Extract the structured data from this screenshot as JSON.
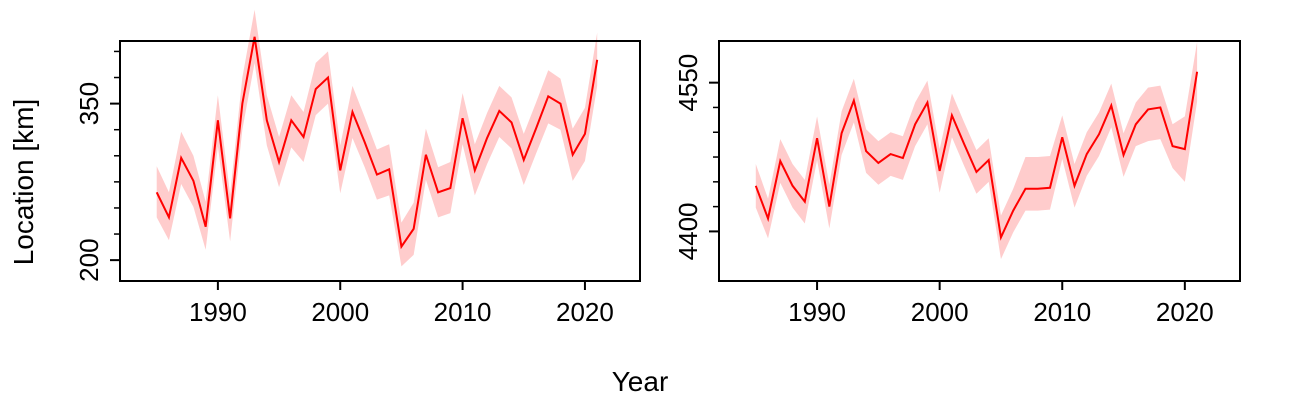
{
  "figure": {
    "xlabel": "Year",
    "ylabel": "Location [km]"
  },
  "colors": {
    "line": "#ff0000",
    "band": "#ffcccc",
    "axis": "#000000"
  },
  "chart_data": [
    {
      "type": "line",
      "title": "",
      "xlabel": "",
      "ylabel": "Location [km]",
      "xlim": [
        1982,
        2024.5
      ],
      "ylim": [
        180,
        410
      ],
      "x_ticks": [
        1990,
        2000,
        2010,
        2020
      ],
      "y_ticks_major": [
        200,
        350
      ],
      "y_ticks_minor": [
        225,
        250,
        275,
        300,
        325,
        375,
        400
      ],
      "grid": false,
      "legend": "none",
      "series": [
        {
          "x": [
            1985,
            1986,
            1987,
            1988,
            1989,
            1990,
            1991,
            1992,
            1993,
            1994,
            1995,
            1996,
            1997,
            1998,
            1999,
            2000,
            2001,
            2002,
            2003,
            2004,
            2005,
            2006,
            2007,
            2008,
            2009,
            2010,
            2011,
            2012,
            2013,
            2014,
            2015,
            2016,
            2017,
            2018,
            2019,
            2020,
            2021
          ],
          "y": [
            265,
            241,
            298,
            276,
            232,
            334,
            240,
            350,
            414,
            334,
            294,
            334,
            318,
            364,
            375,
            286,
            342,
            313,
            282,
            287,
            213,
            230,
            301,
            265,
            269,
            336,
            286,
            317,
            343,
            332,
            296,
            326,
            357,
            350,
            301,
            321,
            392
          ],
          "lower": [
            241,
            219,
            273,
            251,
            210,
            309,
            218,
            325,
            389,
            310,
            270,
            308,
            294,
            339,
            350,
            264,
            317,
            289,
            258,
            262,
            194,
            205,
            277,
            241,
            245,
            311,
            262,
            292,
            318,
            307,
            272,
            302,
            331,
            325,
            276,
            295,
            367
          ],
          "upper": [
            290,
            265,
            323,
            300,
            256,
            358,
            263,
            375,
            440,
            358,
            318,
            358,
            342,
            389,
            400,
            310,
            367,
            337,
            306,
            311,
            236,
            255,
            326,
            289,
            294,
            360,
            311,
            341,
            367,
            356,
            321,
            351,
            382,
            374,
            326,
            346,
            418
          ]
        }
      ]
    },
    {
      "type": "line",
      "title": "",
      "xlabel": "",
      "ylabel": "",
      "xlim": [
        1982,
        2024.5
      ],
      "ylim": [
        4350,
        4592
      ],
      "x_ticks": [
        1990,
        2000,
        2010,
        2020
      ],
      "y_ticks_major": [
        4400,
        4550
      ],
      "y_ticks_minor": [
        4425,
        4450,
        4475,
        4500,
        4525
      ],
      "grid": false,
      "legend": "none",
      "series": [
        {
          "x": [
            1985,
            1986,
            1987,
            1988,
            1989,
            1990,
            1991,
            1992,
            1993,
            1994,
            1995,
            1996,
            1997,
            1998,
            1999,
            2000,
            2001,
            2002,
            2003,
            2004,
            2005,
            2006,
            2007,
            2008,
            2009,
            2010,
            2011,
            2012,
            2013,
            2014,
            2015,
            2016,
            2017,
            2018,
            2019,
            2020,
            2021
          ],
          "y": [
            4446,
            4413,
            4471,
            4446,
            4430,
            4494,
            4425,
            4499,
            4532,
            4481,
            4469,
            4478,
            4474,
            4508,
            4530,
            4461,
            4517,
            4488,
            4460,
            4472,
            4394,
            4421,
            4443,
            4443,
            4444,
            4495,
            4446,
            4478,
            4498,
            4527,
            4477,
            4508,
            4523,
            4525,
            4486,
            4483,
            4561
          ],
          "lower": [
            4424,
            4393,
            4449,
            4424,
            4408,
            4472,
            4403,
            4477,
            4510,
            4459,
            4447,
            4456,
            4452,
            4486,
            4508,
            4439,
            4495,
            4466,
            4438,
            4450,
            4372,
            4399,
            4421,
            4421,
            4422,
            4473,
            4424,
            4456,
            4476,
            4505,
            4455,
            4486,
            4491,
            4493,
            4464,
            4450,
            4531
          ],
          "upper": [
            4468,
            4433,
            4493,
            4468,
            4452,
            4516,
            4447,
            4521,
            4554,
            4503,
            4491,
            4500,
            4496,
            4530,
            4552,
            4483,
            4539,
            4510,
            4482,
            4494,
            4416,
            4443,
            4475,
            4475,
            4476,
            4517,
            4468,
            4500,
            4520,
            4549,
            4499,
            4530,
            4545,
            4547,
            4508,
            4516,
            4591
          ]
        }
      ]
    }
  ]
}
